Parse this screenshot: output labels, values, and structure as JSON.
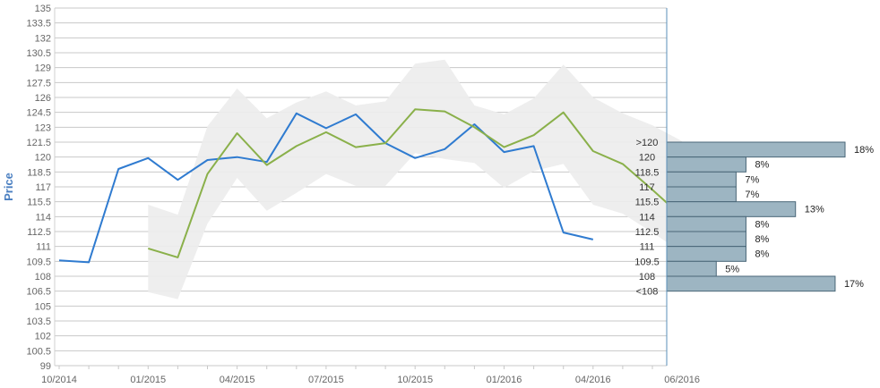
{
  "chart_data": {
    "type": "line",
    "ylabel": "Price",
    "ylim": [
      99,
      135
    ],
    "y_ticks": [
      "135",
      "133.5",
      "132",
      "130.5",
      "129",
      "127.5",
      "126",
      "124.5",
      "123",
      "121.5",
      "120",
      "118.5",
      "117",
      "115.5",
      "114",
      "112.5",
      "111",
      "109.5",
      "108",
      "106.5",
      "105",
      "103.5",
      "102",
      "100.5",
      "99"
    ],
    "x_ticks": [
      "10/2014",
      "01/2015",
      "04/2015",
      "07/2015",
      "10/2015",
      "01/2016",
      "04/2016",
      "06/2016"
    ],
    "grid": true,
    "colors": {
      "series_blue": "#2f7bd0",
      "series_green": "#8ab04a",
      "band": "#ececec",
      "histogram_bar": "#9db5c2",
      "histogram_border": "#4a6778",
      "grid": "#c8c8c8",
      "axis": "#5a8fb8",
      "ylabel": "#4a7fc1"
    },
    "series": [
      {
        "values": [
          109.6,
          109.4,
          118.8,
          119.9,
          117.7,
          119.7,
          120.0,
          119.5,
          124.4,
          122.9,
          124.3,
          121.4,
          119.9,
          120.8,
          123.3,
          120.5,
          121.1,
          112.4,
          111.7
        ]
      },
      {
        "values": [
          null,
          null,
          null,
          110.8,
          109.9,
          118.3,
          122.4,
          119.2,
          121.1,
          122.5,
          121.0,
          121.4,
          124.8,
          124.6,
          123.0,
          121.0,
          122.2,
          124.5,
          120.6,
          119.3,
          116.7,
          114.0
        ]
      }
    ],
    "band": {
      "upper": [
        null,
        null,
        null,
        115.2,
        114.2,
        123.1,
        126.9,
        123.9,
        125.5,
        126.6,
        125.2,
        125.6,
        129.4,
        129.8,
        125.2,
        124.3,
        125.9,
        129.3,
        126.0,
        124.4,
        123.2,
        121.6
      ],
      "lower": [
        null,
        null,
        null,
        106.4,
        105.7,
        113.3,
        117.9,
        114.6,
        116.4,
        118.3,
        117.1,
        117.1,
        120.4,
        119.8,
        119.4,
        116.9,
        118.6,
        119.3,
        115.2,
        114.3,
        112.4,
        110.4
      ]
    },
    "histogram": {
      "bins": [
        {
          "label": ">120",
          "percent": 18,
          "text": "18%"
        },
        {
          "label": "120",
          "percent": 8,
          "text": "8%"
        },
        {
          "label": "118.5",
          "percent": 7,
          "text": "7%"
        },
        {
          "label": "117",
          "percent": 7,
          "text": "7%"
        },
        {
          "label": "115.5",
          "percent": 13,
          "text": "13%"
        },
        {
          "label": "114",
          "percent": 8,
          "text": "8%"
        },
        {
          "label": "112.5",
          "percent": 8,
          "text": "8%"
        },
        {
          "label": "111",
          "percent": 8,
          "text": "8%"
        },
        {
          "label": "109.5",
          "percent": 5,
          "text": "5%"
        },
        {
          "label": "108",
          "percent": 17,
          "text": "17%"
        },
        {
          "label": "<108",
          "percent": null,
          "text": ""
        }
      ]
    }
  }
}
